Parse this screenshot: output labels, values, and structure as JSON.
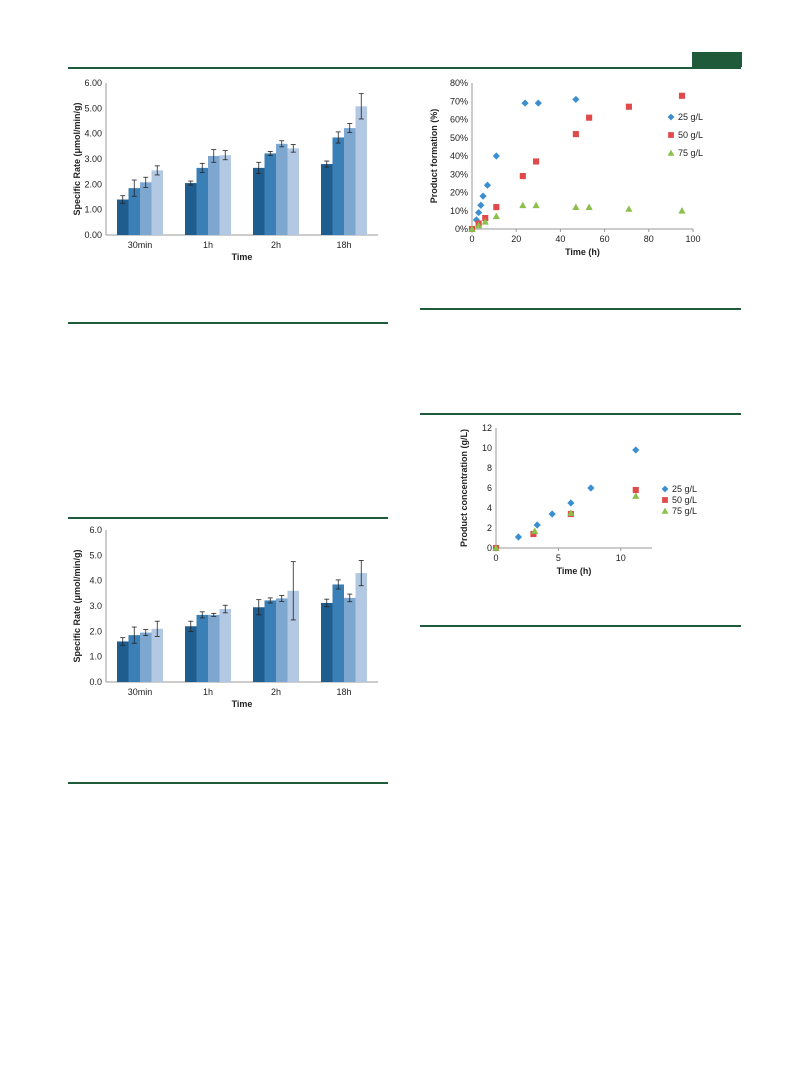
{
  "colors": {
    "rule": "#1f5a3a",
    "bars": [
      "#1f5d8f",
      "#3a7fb5",
      "#7ea7d0",
      "#b3c8e2"
    ],
    "s25": "#3b8fd0",
    "s50": "#e04a4a",
    "s75": "#8cc04c",
    "error": "#222222"
  },
  "chart_data": [
    {
      "type": "bar",
      "xlabel": "Time",
      "ylabel": "Specific Rate (μmol/min/g)",
      "categories": [
        "30min",
        "1h",
        "2h",
        "18h"
      ],
      "ylim": [
        0,
        6
      ],
      "yticks": [
        "0.00",
        "1.00",
        "2.00",
        "3.00",
        "4.00",
        "5.00",
        "6.00"
      ],
      "series": [
        {
          "values": [
            1.4,
            2.05,
            2.65,
            2.8
          ],
          "errors": [
            0.15,
            0.08,
            0.22,
            0.12
          ]
        },
        {
          "values": [
            1.85,
            2.65,
            3.22,
            3.85
          ],
          "errors": [
            0.32,
            0.18,
            0.08,
            0.22
          ]
        },
        {
          "values": [
            2.08,
            3.12,
            3.6,
            4.22
          ],
          "errors": [
            0.2,
            0.25,
            0.12,
            0.18
          ]
        },
        {
          "values": [
            2.55,
            3.15,
            3.42,
            5.08
          ],
          "errors": [
            0.18,
            0.18,
            0.15,
            0.5
          ]
        }
      ]
    },
    {
      "type": "bar",
      "xlabel": "Time",
      "ylabel": "Specific Rate (μmol/min/g)",
      "categories": [
        "30min",
        "1h",
        "2h",
        "18h"
      ],
      "ylim": [
        0,
        6
      ],
      "yticks": [
        "0.0",
        "1.0",
        "2.0",
        "3.0",
        "4.0",
        "5.0",
        "6.0"
      ],
      "series": [
        {
          "values": [
            1.6,
            2.2,
            2.95,
            3.12
          ],
          "errors": [
            0.15,
            0.2,
            0.3,
            0.15
          ]
        },
        {
          "values": [
            1.85,
            2.65,
            3.22,
            3.85
          ],
          "errors": [
            0.32,
            0.12,
            0.1,
            0.18
          ]
        },
        {
          "values": [
            1.95,
            2.65,
            3.3,
            3.32
          ],
          "errors": [
            0.12,
            0.06,
            0.12,
            0.15
          ]
        },
        {
          "values": [
            2.1,
            2.88,
            3.6,
            4.3
          ],
          "errors": [
            0.3,
            0.15,
            1.15,
            0.5
          ]
        }
      ]
    },
    {
      "type": "scatter",
      "xlabel": "Time (h)",
      "ylabel": "Product formation (%)",
      "xlim": [
        0,
        100
      ],
      "ylim": [
        0,
        80
      ],
      "xticks": [
        "0",
        "20",
        "40",
        "60",
        "80",
        "100"
      ],
      "yticks": [
        "0%",
        "10%",
        "20%",
        "30%",
        "40%",
        "50%",
        "60%",
        "70%",
        "80%"
      ],
      "legend": "right",
      "series": [
        {
          "name": "25 g/L",
          "marker": "diamond",
          "x": [
            0,
            2,
            3,
            4,
            5,
            7,
            11,
            24,
            30,
            47
          ],
          "y": [
            0,
            5,
            9,
            13,
            18,
            24,
            40,
            69,
            69,
            71
          ]
        },
        {
          "name": "50 g/L",
          "marker": "square",
          "x": [
            0,
            3,
            6,
            11,
            23,
            29,
            47,
            53,
            71,
            95
          ],
          "y": [
            0,
            3,
            6,
            12,
            29,
            37,
            52,
            61,
            67,
            73
          ]
        },
        {
          "name": "75 g/L",
          "marker": "triangle",
          "x": [
            0,
            3,
            6,
            11,
            23,
            29,
            47,
            53,
            71,
            95
          ],
          "y": [
            0,
            2,
            4,
            7,
            13,
            13,
            12,
            12,
            11,
            10
          ]
        }
      ]
    },
    {
      "type": "scatter",
      "xlabel": "Time (h)",
      "ylabel": "Product concentration (g/L)",
      "xlim": [
        0,
        12.5
      ],
      "ylim": [
        0,
        12
      ],
      "xticks": [
        "0",
        "5",
        "10"
      ],
      "yticks": [
        "0",
        "2",
        "4",
        "6",
        "8",
        "10",
        "12"
      ],
      "legend": "right",
      "series": [
        {
          "name": "25 g/L",
          "marker": "diamond",
          "x": [
            0,
            1.8,
            3.3,
            4.5,
            6,
            7.6,
            11.2
          ],
          "y": [
            0,
            1.1,
            2.3,
            3.4,
            4.5,
            6.0,
            9.8
          ]
        },
        {
          "name": "50 g/L",
          "marker": "square",
          "x": [
            0,
            3,
            6,
            11.2
          ],
          "y": [
            0,
            1.4,
            3.4,
            5.8
          ]
        },
        {
          "name": "75 g/L",
          "marker": "triangle",
          "x": [
            0,
            3.1,
            6,
            11.2
          ],
          "y": [
            0,
            1.7,
            3.5,
            5.2
          ]
        }
      ]
    }
  ]
}
